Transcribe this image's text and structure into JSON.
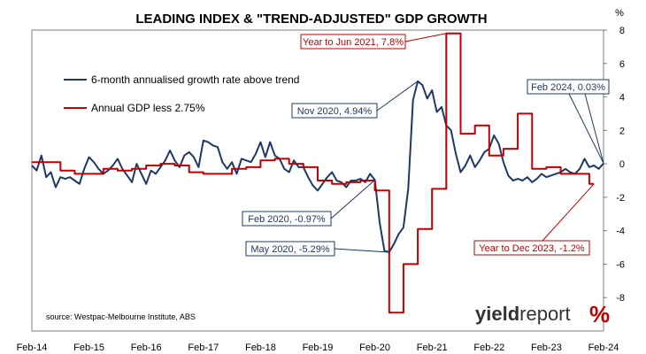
{
  "chart_data": {
    "type": "line",
    "title": "LEADING INDEX & \"TREND-ADJUSTED\" GDP GROWTH",
    "y_unit": "%",
    "ylim": [
      -10,
      8
    ],
    "y_ticks": [
      "8",
      "6",
      "4",
      "2",
      "0",
      "-2",
      "-4",
      "-6",
      "-8"
    ],
    "x_tick_labels": [
      "Feb-14",
      "Feb-15",
      "Feb-16",
      "Feb-17",
      "Feb-18",
      "Feb-19",
      "Feb-20",
      "Feb-21",
      "Feb-22",
      "Feb-23",
      "Feb-24"
    ],
    "xlim": [
      "2014-02",
      "2024-02"
    ],
    "grid": false,
    "legend_position": "top-left inside plot",
    "series": [
      {
        "name": "6-month annualised growth rate above trend",
        "color": "#1f3864",
        "points": [
          [
            "2014-02",
            -0.1
          ],
          [
            "2014-03",
            -0.4
          ],
          [
            "2014-04",
            0.5
          ],
          [
            "2014-05",
            -0.8
          ],
          [
            "2014-06",
            -0.5
          ],
          [
            "2014-07",
            -1.4
          ],
          [
            "2014-08",
            -0.8
          ],
          [
            "2014-09",
            -0.9
          ],
          [
            "2014-10",
            -0.8
          ],
          [
            "2014-11",
            -1.0
          ],
          [
            "2014-12",
            -1.2
          ],
          [
            "2015-01",
            -0.3
          ],
          [
            "2015-02",
            0.4
          ],
          [
            "2015-03",
            0.1
          ],
          [
            "2015-04",
            -0.3
          ],
          [
            "2015-05",
            -0.6
          ],
          [
            "2015-06",
            -0.4
          ],
          [
            "2015-07",
            -0.1
          ],
          [
            "2015-08",
            0.3
          ],
          [
            "2015-09",
            -0.3
          ],
          [
            "2015-10",
            -0.7
          ],
          [
            "2015-11",
            -1.1
          ],
          [
            "2015-12",
            0.0
          ],
          [
            "2016-01",
            -0.6
          ],
          [
            "2016-02",
            -1.2
          ],
          [
            "2016-03",
            -0.4
          ],
          [
            "2016-04",
            -0.6
          ],
          [
            "2016-05",
            -0.2
          ],
          [
            "2016-06",
            0.2
          ],
          [
            "2016-07",
            0.8
          ],
          [
            "2016-08",
            0.2
          ],
          [
            "2016-09",
            -0.2
          ],
          [
            "2016-10",
            0.5
          ],
          [
            "2016-11",
            0.7
          ],
          [
            "2016-12",
            0.4
          ],
          [
            "2017-01",
            -0.2
          ],
          [
            "2017-02",
            1.4
          ],
          [
            "2017-03",
            1.3
          ],
          [
            "2017-04",
            1.1
          ],
          [
            "2017-05",
            1.0
          ],
          [
            "2017-06",
            0.1
          ],
          [
            "2017-07",
            -0.3
          ],
          [
            "2017-08",
            0.1
          ],
          [
            "2017-09",
            -0.6
          ],
          [
            "2017-10",
            0.3
          ],
          [
            "2017-11",
            0.2
          ],
          [
            "2017-12",
            0.1
          ],
          [
            "2018-01",
            0.6
          ],
          [
            "2018-02",
            1.3
          ],
          [
            "2018-03",
            0.4
          ],
          [
            "2018-04",
            1.3
          ],
          [
            "2018-05",
            0.5
          ],
          [
            "2018-06",
            0.3
          ],
          [
            "2018-07",
            -0.3
          ],
          [
            "2018-08",
            -0.5
          ],
          [
            "2018-09",
            0.2
          ],
          [
            "2018-10",
            -0.2
          ],
          [
            "2018-11",
            -0.2
          ],
          [
            "2018-12",
            -0.8
          ],
          [
            "2019-01",
            -1.3
          ],
          [
            "2019-02",
            -1.6
          ],
          [
            "2019-03",
            -1.2
          ],
          [
            "2019-04",
            -0.8
          ],
          [
            "2019-05",
            -0.5
          ],
          [
            "2019-06",
            -1.0
          ],
          [
            "2019-07",
            -1.1
          ],
          [
            "2019-08",
            -1.4
          ],
          [
            "2019-09",
            -1.0
          ],
          [
            "2019-10",
            -1.0
          ],
          [
            "2019-11",
            -0.9
          ],
          [
            "2019-12",
            -1.1
          ],
          [
            "2020-01",
            -0.6
          ],
          [
            "2020-02",
            -0.97
          ],
          [
            "2020-03",
            -3.5
          ],
          [
            "2020-04",
            -5.2
          ],
          [
            "2020-05",
            -5.29
          ],
          [
            "2020-06",
            -4.8
          ],
          [
            "2020-07",
            -4.2
          ],
          [
            "2020-08",
            -3.8
          ],
          [
            "2020-09",
            -1.5
          ],
          [
            "2020-10",
            3.8
          ],
          [
            "2020-11",
            4.94
          ],
          [
            "2020-12",
            4.7
          ],
          [
            "2021-01",
            3.9
          ],
          [
            "2021-02",
            4.4
          ],
          [
            "2021-03",
            3.1
          ],
          [
            "2021-04",
            3.4
          ],
          [
            "2021-05",
            2.3
          ],
          [
            "2021-06",
            2.0
          ],
          [
            "2021-07",
            0.6
          ],
          [
            "2021-08",
            -0.5
          ],
          [
            "2021-09",
            -0.1
          ],
          [
            "2021-10",
            0.5
          ],
          [
            "2021-11",
            -0.2
          ],
          [
            "2021-12",
            0.2
          ],
          [
            "2022-01",
            0.7
          ],
          [
            "2022-02",
            0.9
          ],
          [
            "2022-03",
            1.7
          ],
          [
            "2022-04",
            1.2
          ],
          [
            "2022-05",
            0.1
          ],
          [
            "2022-06",
            -0.7
          ],
          [
            "2022-07",
            -1.0
          ],
          [
            "2022-08",
            -0.9
          ],
          [
            "2022-09",
            -1.0
          ],
          [
            "2022-10",
            -0.8
          ],
          [
            "2022-11",
            -1.1
          ],
          [
            "2022-12",
            -0.9
          ],
          [
            "2023-01",
            -0.6
          ],
          [
            "2023-02",
            -0.8
          ],
          [
            "2023-03",
            -0.7
          ],
          [
            "2023-04",
            -0.6
          ],
          [
            "2023-05",
            -0.5
          ],
          [
            "2023-06",
            -0.3
          ],
          [
            "2023-07",
            -0.5
          ],
          [
            "2023-08",
            -0.6
          ],
          [
            "2023-09",
            -0.3
          ],
          [
            "2023-10",
            0.3
          ],
          [
            "2023-11",
            -0.2
          ],
          [
            "2023-12",
            -0.1
          ],
          [
            "2024-01",
            -0.3
          ],
          [
            "2024-02",
            0.03
          ]
        ]
      },
      {
        "name": "Annual GDP less 2.75%",
        "color": "#c00000",
        "step": true,
        "points": [
          [
            "2014-02",
            0.1
          ],
          [
            "2014-05",
            0.1
          ],
          [
            "2014-08",
            -0.4
          ],
          [
            "2014-11",
            -0.6
          ],
          [
            "2015-02",
            -0.6
          ],
          [
            "2015-05",
            -0.3
          ],
          [
            "2015-08",
            -0.4
          ],
          [
            "2015-11",
            -0.3
          ],
          [
            "2016-02",
            -0.1
          ],
          [
            "2016-05",
            0.0
          ],
          [
            "2016-08",
            -0.1
          ],
          [
            "2016-11",
            -0.5
          ],
          [
            "2017-02",
            -0.6
          ],
          [
            "2017-05",
            -0.6
          ],
          [
            "2017-08",
            -0.3
          ],
          [
            "2017-11",
            -0.2
          ],
          [
            "2018-02",
            0.2
          ],
          [
            "2018-05",
            0.3
          ],
          [
            "2018-08",
            0.0
          ],
          [
            "2018-11",
            -0.2
          ],
          [
            "2019-02",
            -1.0
          ],
          [
            "2019-05",
            -1.2
          ],
          [
            "2019-08",
            -1.1
          ],
          [
            "2019-11",
            -1.0
          ],
          [
            "2020-02",
            -1.6
          ],
          [
            "2020-05",
            -8.9
          ],
          [
            "2020-08",
            -6.0
          ],
          [
            "2020-11",
            -3.9
          ],
          [
            "2021-02",
            -1.5
          ],
          [
            "2021-05",
            7.8
          ],
          [
            "2021-08",
            1.8
          ],
          [
            "2021-11",
            2.3
          ],
          [
            "2022-02",
            0.5
          ],
          [
            "2022-05",
            0.9
          ],
          [
            "2022-08",
            3.0
          ],
          [
            "2022-11",
            -0.3
          ],
          [
            "2023-02",
            -0.2
          ],
          [
            "2023-05",
            -0.6
          ],
          [
            "2023-08",
            -0.6
          ],
          [
            "2023-11",
            -1.2
          ],
          [
            "2023-12",
            -1.2
          ]
        ]
      }
    ],
    "annotations": [
      {
        "label": "Year to Jun 2021, 7.8%",
        "series": 1,
        "at": [
          "2021-05",
          7.8
        ],
        "color": "#c00000"
      },
      {
        "label": "Nov 2020, 4.94%",
        "series": 0,
        "at": [
          "2020-11",
          4.94
        ],
        "color": "#1f3864"
      },
      {
        "label": "Feb 2024, 0.03%",
        "series": 0,
        "at": [
          "2024-02",
          0.03
        ],
        "color": "#1f3864"
      },
      {
        "label": "Feb 2020, -0.97%",
        "series": 0,
        "at": [
          "2020-02",
          -0.97
        ],
        "color": "#1f3864"
      },
      {
        "label": "May 2020, -5.29%",
        "series": 0,
        "at": [
          "2020-05",
          -5.29
        ],
        "color": "#1f3864"
      },
      {
        "label": "Year to Dec 2023, -1.2%",
        "series": 1,
        "at": [
          "2023-12",
          -1.2
        ],
        "color": "#c00000"
      }
    ],
    "source": "source: Westpac-Melbourne Institute, ABS",
    "logo": {
      "word_bold": "yield",
      "word_light": "report",
      "symbol": "%"
    }
  }
}
